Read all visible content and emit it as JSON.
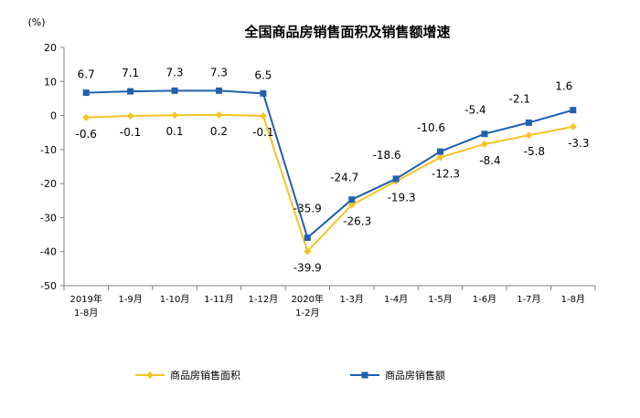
{
  "chart_data": {
    "type": "line",
    "title": "全国商品房销售面积及销售额增速",
    "unit": "(%)",
    "ylim": [
      -50,
      20
    ],
    "yticks": [
      "20",
      "10",
      "0",
      "-10",
      "-20",
      "-30",
      "-40",
      "-50"
    ],
    "categories": [
      [
        "2019年",
        "1-8月"
      ],
      [
        "1-9月"
      ],
      [
        "1-10月"
      ],
      [
        "1-11月"
      ],
      [
        "1-12月"
      ],
      [
        "2020年",
        "1-2月"
      ],
      [
        "1-3月"
      ],
      [
        "1-4月"
      ],
      [
        "1-5月"
      ],
      [
        "1-6月"
      ],
      [
        "1-7月"
      ],
      [
        "1-8月"
      ]
    ],
    "legend_position": "bottom",
    "series": [
      {
        "name": "商品房销售面积",
        "color": "#F5C324",
        "marker": "diamond",
        "values": [
          -0.6,
          -0.1,
          0.1,
          0.2,
          -0.1,
          -39.9,
          -26.3,
          -19.3,
          -12.3,
          -8.4,
          -5.8,
          -3.3
        ],
        "labels": [
          "-0.6",
          "-0.1",
          "0.1",
          "0.2",
          "-0.1",
          "-39.9",
          "-26.3",
          "-19.3",
          "-12.3",
          "-8.4",
          "-5.8",
          "-3.3"
        ]
      },
      {
        "name": "商品房销售额",
        "color": "#1F5FAF",
        "marker": "square",
        "values": [
          6.7,
          7.1,
          7.3,
          7.3,
          6.5,
          -35.9,
          -24.7,
          -18.6,
          -10.6,
          -5.4,
          -2.1,
          1.6
        ],
        "labels": [
          "6.7",
          "7.1",
          "7.3",
          "7.3",
          "6.5",
          "-35.9",
          "-24.7",
          "-18.6",
          "-10.6",
          "-5.4",
          "-2.1",
          "1.6"
        ]
      }
    ]
  }
}
